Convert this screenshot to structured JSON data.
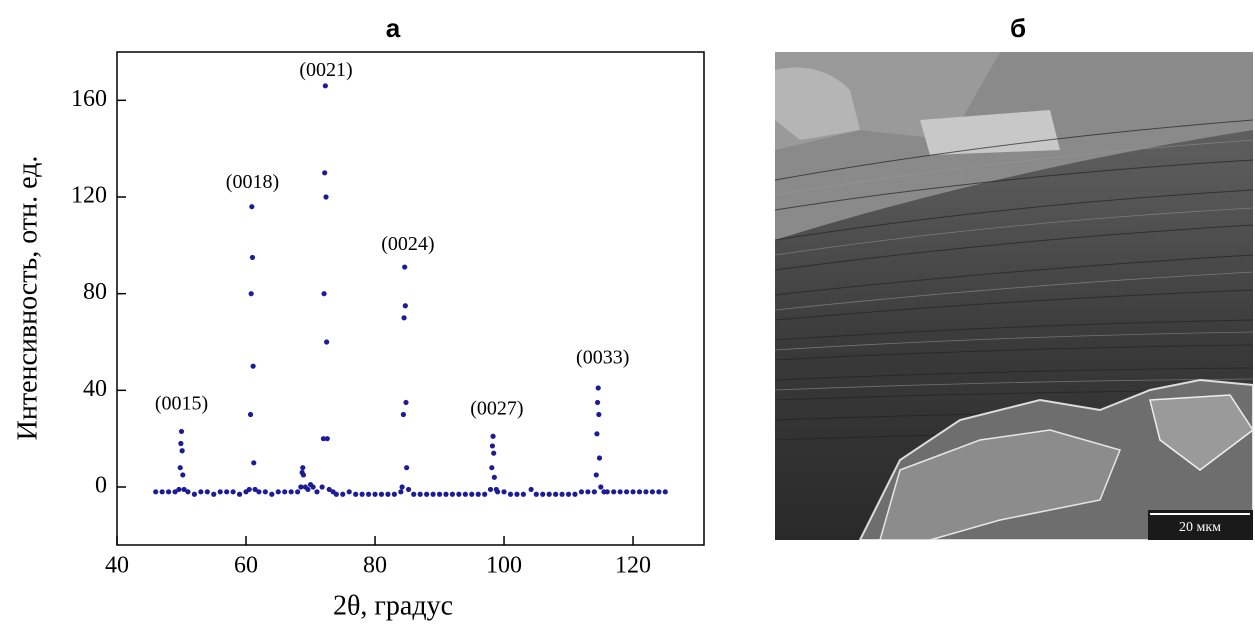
{
  "chart_data": {
    "type": "scatter",
    "title": "а",
    "xlabel": "2θ, градус",
    "ylabel": "Интенсивность, отн. ед.",
    "color": "#1c1c96",
    "xlim": [
      40,
      131
    ],
    "ylim": [
      -24,
      180
    ],
    "xticks": [
      40,
      60,
      80,
      100,
      120
    ],
    "yticks": [
      0,
      40,
      80,
      120,
      160
    ],
    "x": [
      46,
      47,
      48,
      49,
      49.6,
      49.8,
      49.9,
      50.0,
      50.1,
      50.2,
      50.4,
      51,
      52,
      53,
      54,
      55,
      56,
      57,
      58,
      59,
      60,
      60.5,
      60.7,
      60.8,
      60.9,
      61.0,
      61.1,
      61.2,
      61.4,
      62,
      63,
      64,
      65,
      66,
      67,
      68,
      68.5,
      68.7,
      68.8,
      68.9,
      69.2,
      69.6,
      70.0,
      70.4,
      71,
      71.8,
      72.0,
      72.1,
      72.2,
      72.3,
      72.4,
      72.5,
      72.6,
      72.9,
      73.5,
      74,
      75,
      76,
      77,
      78,
      79,
      80,
      81,
      82,
      83,
      84,
      84.2,
      84.4,
      84.5,
      84.6,
      84.7,
      84.8,
      84.9,
      85.2,
      86,
      87,
      88,
      89,
      90,
      91,
      92,
      93,
      94,
      95,
      96,
      97,
      97.9,
      98.1,
      98.2,
      98.3,
      98.4,
      98.5,
      98.8,
      99,
      100,
      101,
      102,
      103,
      104.2,
      105,
      106,
      107,
      108,
      109,
      110,
      111,
      112,
      113,
      114,
      114.3,
      114.4,
      114.5,
      114.6,
      114.7,
      114.8,
      115.0,
      115.5,
      116,
      117,
      118,
      119,
      120,
      121,
      122,
      123,
      124,
      125
    ],
    "values": [
      -2,
      -2,
      -2,
      -2,
      -1,
      8,
      18,
      23,
      15,
      5,
      -1,
      -2,
      -3,
      -2,
      -2,
      -3,
      -2,
      -2,
      -2,
      -3,
      -2,
      -1,
      30,
      80,
      116,
      95,
      50,
      10,
      -1,
      -2,
      -2,
      -3,
      -2,
      -2,
      -2,
      -2,
      0,
      6,
      8,
      5,
      0,
      -1,
      1,
      0,
      -2,
      0,
      20,
      80,
      130,
      166,
      120,
      60,
      20,
      -1,
      -2,
      -3,
      -3,
      -2,
      -3,
      -3,
      -3,
      -3,
      -3,
      -3,
      -3,
      -2,
      0,
      30,
      70,
      91,
      75,
      35,
      8,
      -1,
      -3,
      -3,
      -3,
      -3,
      -3,
      -3,
      -3,
      -3,
      -3,
      -3,
      -3,
      -3,
      -1,
      8,
      17,
      21,
      14,
      4,
      -1,
      -2,
      -2,
      -3,
      -3,
      -3,
      -1,
      -3,
      -3,
      -3,
      -3,
      -3,
      -3,
      -3,
      -2,
      -2,
      -2,
      5,
      22,
      35,
      41,
      30,
      12,
      0,
      -2,
      -2,
      -2,
      -2,
      -2,
      -2,
      -2,
      -2,
      -2,
      -2,
      -2
    ],
    "annotations": [
      {
        "text": "(0015)",
        "x": 50,
        "y": 34
      },
      {
        "text": "(0018)",
        "x": 61,
        "y": 125.6
      },
      {
        "text": "(0021)",
        "x": 72.4,
        "y": 172
      },
      {
        "text": "(0024)",
        "x": 85.1,
        "y": 100
      },
      {
        "text": "(0027)",
        "x": 98.9,
        "y": 32
      },
      {
        "text": "(0033)",
        "x": 115.3,
        "y": 53
      }
    ]
  },
  "image": {
    "title": "б",
    "scale_bar": "20 мкм"
  }
}
